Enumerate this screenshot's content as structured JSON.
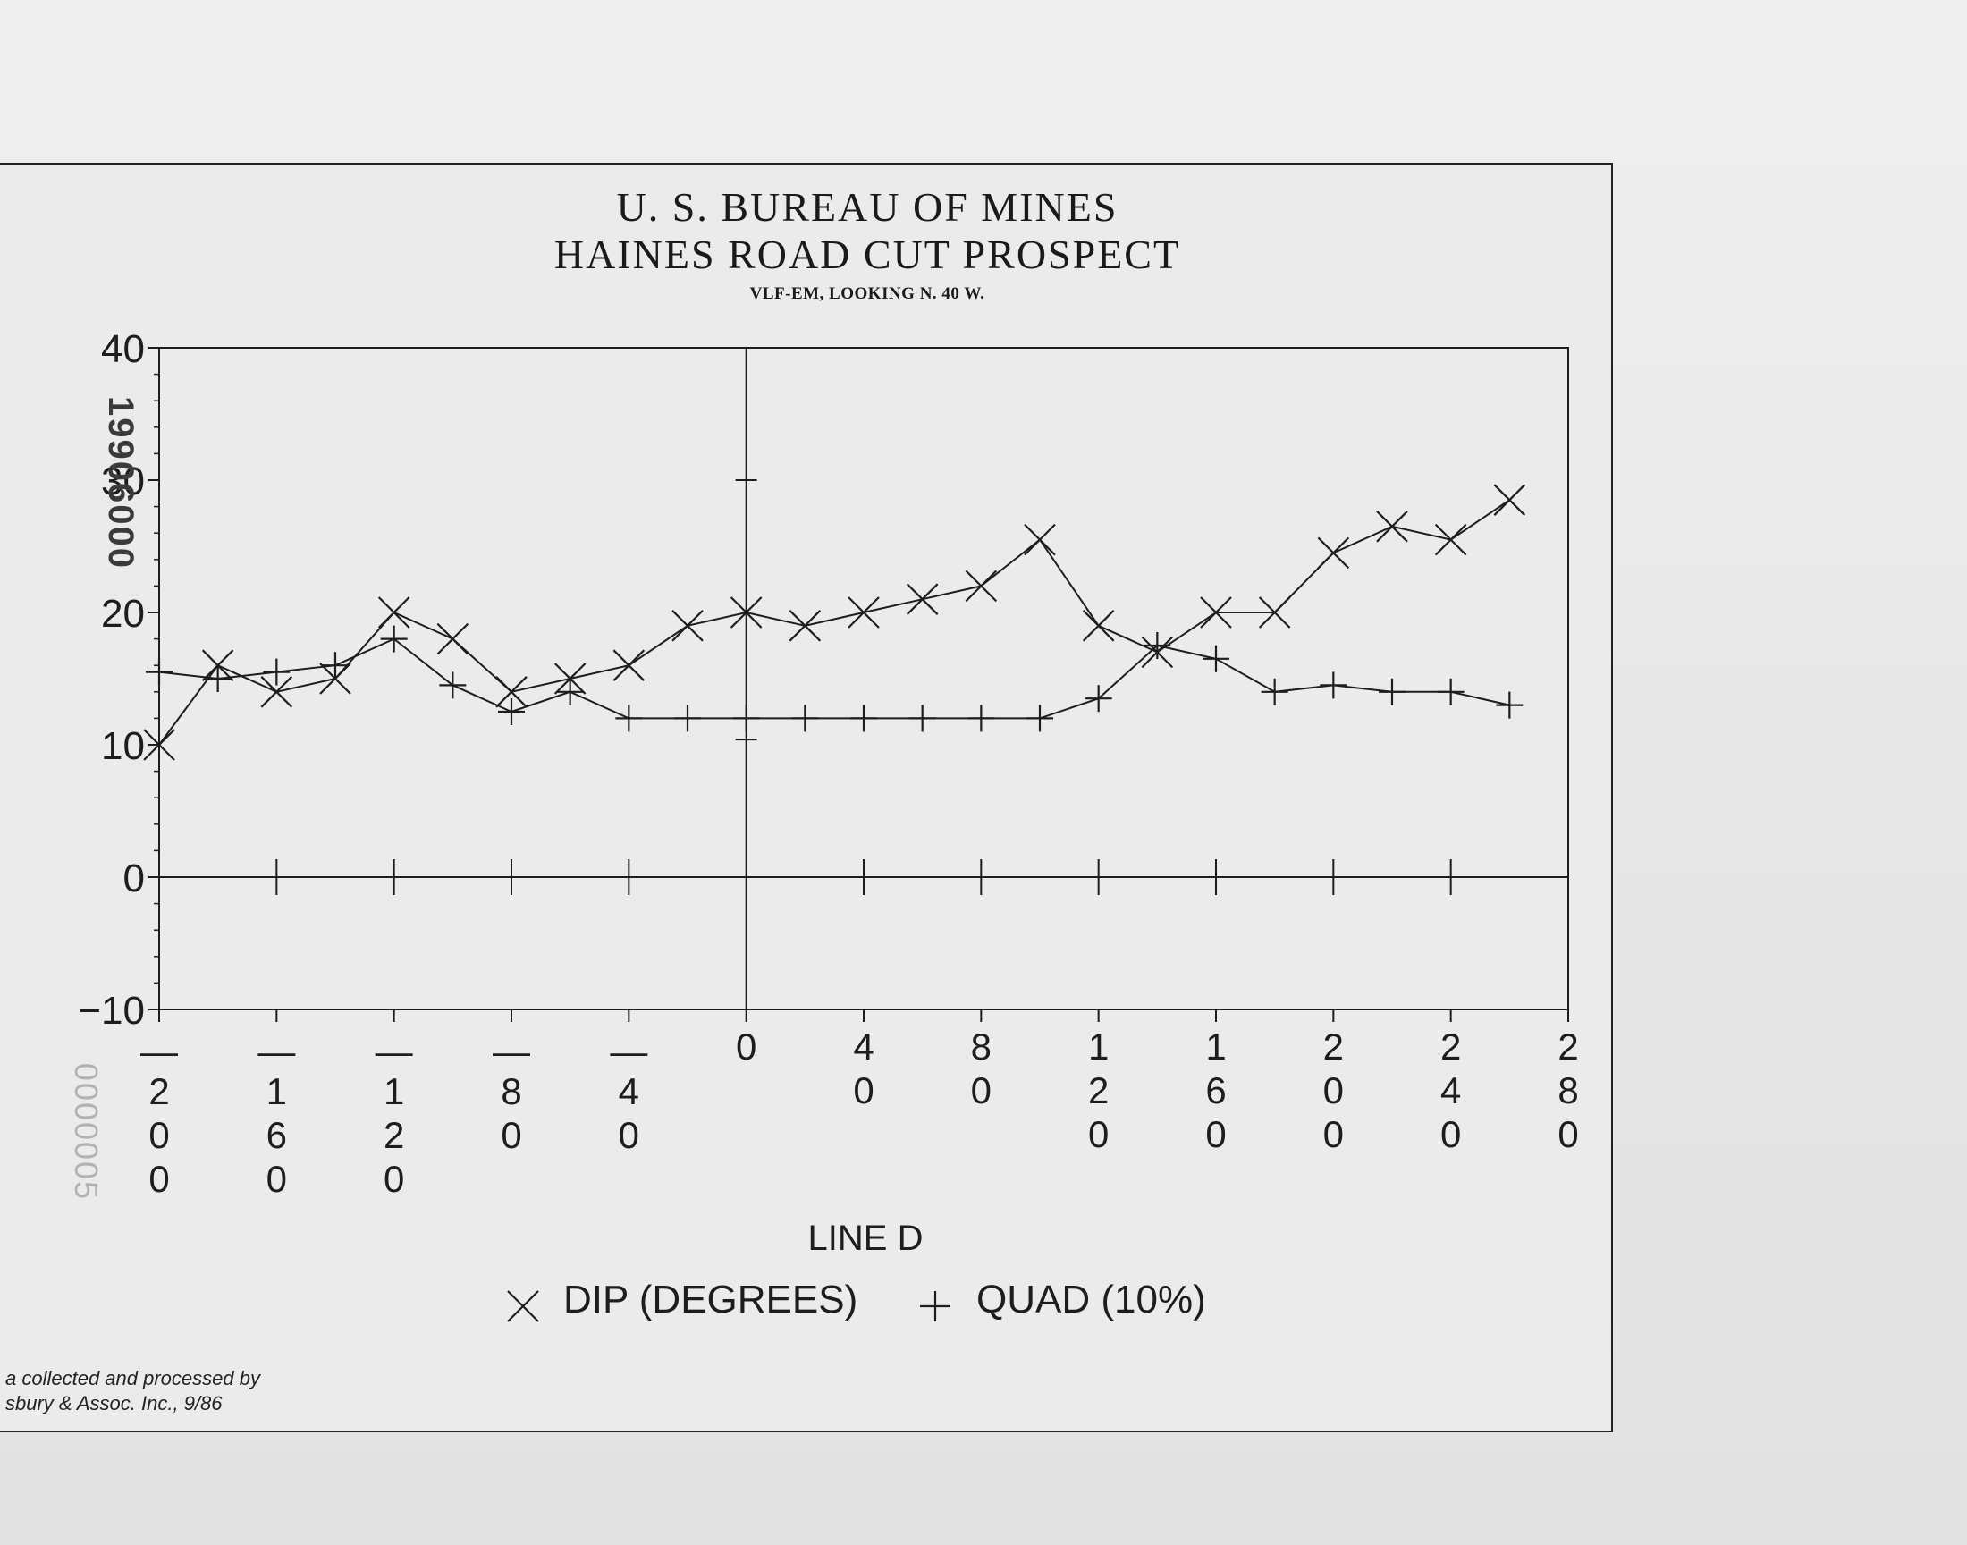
{
  "document": {
    "title_line1": "U. S. BUREAU OF MINES",
    "title_line2": "HAINES ROAD CUT PROSPECT",
    "subtitle": "VLF-EM, LOOKING N. 40 W.",
    "credit_line1": "a collected and processed by",
    "credit_line2": "sbury & Assoc. Inc., 9/86",
    "stamp_top": "19906000",
    "stamp_left": "0000005"
  },
  "chart_data": {
    "type": "line",
    "xlabel": "LINE D",
    "ylabel": "",
    "xlim": [
      -200,
      280
    ],
    "ylim": [
      -10,
      40
    ],
    "y_ticks": [
      -10,
      0,
      10,
      20,
      30,
      40
    ],
    "y_tick_labels": [
      "−10",
      "0",
      "10",
      "20",
      "30",
      "40"
    ],
    "x_ticks": [
      -200,
      -160,
      -120,
      -80,
      -40,
      0,
      40,
      80,
      120,
      160,
      200,
      240,
      280
    ],
    "x_tick_labels": [
      [
        "—",
        "2",
        "0",
        "0"
      ],
      [
        "—",
        "1",
        "6",
        "0"
      ],
      [
        "—",
        "1",
        "2",
        "0"
      ],
      [
        "—",
        "8",
        "0"
      ],
      [
        "—",
        "4",
        "0"
      ],
      [
        "0"
      ],
      [
        "4",
        "0"
      ],
      [
        "8",
        "0"
      ],
      [
        "1",
        "2",
        "0"
      ],
      [
        "1",
        "6",
        "0"
      ],
      [
        "2",
        "0",
        "0"
      ],
      [
        "2",
        "4",
        "0"
      ],
      [
        "2",
        "8",
        "0"
      ]
    ],
    "series": [
      {
        "name": "DIP (DEGREES)",
        "marker": "x",
        "points": [
          [
            -200,
            10
          ],
          [
            -180,
            16
          ],
          [
            -160,
            14
          ],
          [
            -140,
            15
          ],
          [
            -120,
            20
          ],
          [
            -100,
            18
          ],
          [
            -80,
            14
          ],
          [
            -60,
            15
          ],
          [
            -40,
            16
          ],
          [
            -20,
            19
          ],
          [
            0,
            20
          ],
          [
            20,
            19
          ],
          [
            40,
            20
          ],
          [
            60,
            21
          ],
          [
            80,
            22
          ],
          [
            100,
            25.5
          ],
          [
            120,
            19
          ],
          [
            140,
            17
          ],
          [
            160,
            20
          ],
          [
            180,
            20
          ],
          [
            200,
            24.5
          ],
          [
            220,
            26.5
          ],
          [
            240,
            25.5
          ],
          [
            260,
            28.5
          ]
        ]
      },
      {
        "name": "QUAD (10%)",
        "marker": "+",
        "points": [
          [
            -200,
            15.5
          ],
          [
            -180,
            15
          ],
          [
            -160,
            15.5
          ],
          [
            -140,
            16
          ],
          [
            -120,
            18
          ],
          [
            -100,
            14.5
          ],
          [
            -80,
            12.5
          ],
          [
            -60,
            14
          ],
          [
            -40,
            12
          ],
          [
            -20,
            12
          ],
          [
            0,
            12
          ],
          [
            20,
            12
          ],
          [
            40,
            12
          ],
          [
            60,
            12
          ],
          [
            80,
            12
          ],
          [
            100,
            12
          ],
          [
            120,
            13.5
          ],
          [
            140,
            17.5
          ],
          [
            160,
            16.5
          ],
          [
            180,
            14
          ],
          [
            200,
            14.5
          ],
          [
            220,
            14
          ],
          [
            240,
            14
          ],
          [
            260,
            13
          ]
        ]
      }
    ],
    "legend": "bottom-center",
    "grid": false
  }
}
